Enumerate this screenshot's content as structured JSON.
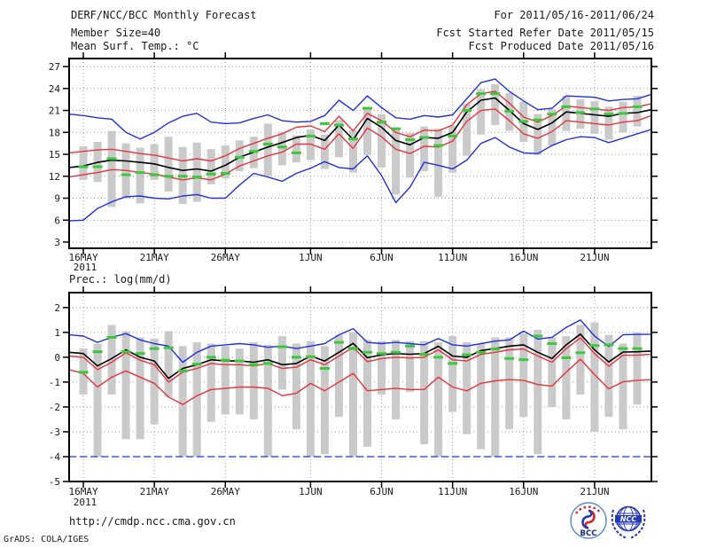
{
  "header": {
    "title": "DERF/NCC/BCC Monthly Forecast",
    "member_size": "Member Size=40",
    "variable": "Mean Surf. Temp.: °C",
    "for_range": "For 2011/05/16-2011/06/24",
    "fcst_started": "Fcst Started Refer Date 2011/05/15",
    "fcst_produced": "Fcst Produced Date 2011/05/16"
  },
  "footer": {
    "url": "http://cmdp.ncc.cma.gov.cn",
    "credit": "GrADS: COLA/IGES",
    "logos": {
      "bcc": "BCC",
      "ncc": "NCC"
    }
  },
  "colors": {
    "line_blue": "#2030e0",
    "line_red": "#e8323c",
    "line_black": "#000000",
    "obs_green": "#3cc83c",
    "bar_gray": "#cacaca",
    "grid_gray": "#989898",
    "frame_black": "#000000",
    "logo_bcc_ring": "#5b8dd6",
    "logo_bcc_red": "#d42222",
    "logo_bcc_navy": "#1a2a7a",
    "logo_ncc_blue": "#2438b8"
  },
  "chart_data": [
    {
      "type": "line",
      "name": "temperature-chart",
      "title": "Mean Surf. Temp.: °C",
      "x_year_label": "2011",
      "x_tick_labels": [
        "16MAY",
        "21MAY",
        "26MAY",
        "1JUN",
        "6JUN",
        "11JUN",
        "16JUN",
        "21JUN"
      ],
      "x_tick_days": [
        1,
        6,
        11,
        17,
        22,
        27,
        32,
        37
      ],
      "n_points": 42,
      "ylim": [
        2.15,
        28.1
      ],
      "yticks": [
        27,
        24,
        21,
        18,
        15,
        12,
        9,
        6,
        3
      ],
      "grid": "dotted",
      "series": [
        {
          "name": "max_blue",
          "color": "blue",
          "values": [
            20.5,
            20.3,
            20.0,
            19.8,
            18.0,
            17.1,
            18.0,
            19.3,
            20.2,
            20.6,
            19.4,
            19.2,
            19.3,
            19.9,
            20.4,
            19.6,
            19.4,
            19.5,
            20.3,
            22.4,
            21.0,
            23.0,
            21.4,
            20.0,
            19.8,
            20.3,
            20.1,
            20.4,
            22.6,
            24.8,
            25.3,
            23.6,
            22.3,
            21.1,
            21.3,
            23.0,
            22.9,
            22.8,
            22.3,
            22.5,
            22.6,
            23.2
          ]
        },
        {
          "name": "min_blue",
          "color": "blue",
          "values": [
            5.9,
            6.0,
            7.6,
            8.5,
            9.2,
            9.3,
            9.0,
            8.9,
            9.3,
            9.5,
            9.0,
            9.0,
            10.8,
            12.4,
            11.9,
            11.3,
            12.4,
            13.1,
            14.0,
            13.2,
            13.0,
            14.8,
            12.1,
            8.4,
            10.5,
            13.9,
            13.5,
            13.0,
            14.2,
            16.5,
            17.3,
            16.0,
            15.2,
            15.1,
            16.2,
            17.0,
            17.4,
            17.3,
            16.6,
            17.2,
            17.8,
            18.4
          ]
        },
        {
          "name": "upper_red",
          "color": "red",
          "values": [
            15.2,
            15.4,
            15.6,
            15.7,
            15.4,
            15.1,
            14.9,
            14.5,
            14.1,
            14.4,
            14.1,
            14.8,
            15.8,
            16.5,
            17.2,
            17.8,
            18.7,
            18.9,
            18.1,
            20.2,
            18.2,
            20.6,
            19.6,
            18.0,
            17.4,
            18.3,
            18.2,
            19.0,
            21.8,
            23.3,
            23.6,
            22.0,
            20.1,
            19.4,
            20.3,
            21.6,
            21.4,
            21.2,
            21.0,
            21.4,
            21.5,
            21.9
          ]
        },
        {
          "name": "lower_red",
          "color": "red",
          "values": [
            11.9,
            12.2,
            12.5,
            12.9,
            12.8,
            12.5,
            12.3,
            11.9,
            11.5,
            11.8,
            11.5,
            12.3,
            13.4,
            14.1,
            14.8,
            15.3,
            16.4,
            16.4,
            15.7,
            17.8,
            15.8,
            18.6,
            17.4,
            15.7,
            15.1,
            16.1,
            16.0,
            16.8,
            19.5,
            21.0,
            21.2,
            19.6,
            17.8,
            17.2,
            18.1,
            19.6,
            19.4,
            19.2,
            19.0,
            19.4,
            19.6,
            20.3
          ]
        },
        {
          "name": "mean_black",
          "color": "black",
          "values": [
            13.2,
            13.4,
            13.9,
            14.2,
            14.1,
            13.9,
            13.7,
            13.2,
            12.8,
            13.0,
            12.7,
            13.5,
            14.6,
            15.3,
            16.0,
            16.6,
            17.3,
            17.6,
            16.9,
            19.0,
            17.0,
            19.9,
            18.7,
            16.9,
            16.3,
            17.3,
            17.2,
            18.0,
            20.8,
            22.4,
            22.7,
            21.0,
            19.2,
            18.4,
            19.3,
            20.8,
            20.6,
            20.4,
            20.2,
            20.6,
            20.7,
            21.1
          ]
        }
      ],
      "obs": {
        "name": "obs_green_dash",
        "color": "green",
        "start_day": 1,
        "values": [
          13.3,
          13.3,
          14.4,
          12.2,
          12.5,
          12.2,
          12.0,
          12.0,
          11.9,
          12.3,
          12.4,
          14.6,
          15.4,
          16.4,
          16.0,
          15.2,
          17.5,
          19.2,
          19.0,
          17.1,
          21.3,
          19.4,
          18.5,
          17.0,
          17.3,
          16.2,
          17.5,
          21.0,
          23.3,
          23.3,
          20.9,
          19.5,
          19.7,
          20.5,
          21.5,
          20.7,
          21.2,
          20.5,
          20.6,
          21.5
        ]
      },
      "bars": {
        "name": "member_spread",
        "color": "gray",
        "start_day": 1,
        "low": [
          11.5,
          11.2,
          7.8,
          9.0,
          8.3,
          11.5,
          9.9,
          8.2,
          8.5,
          10.9,
          11.7,
          12.7,
          13.1,
          12.1,
          13.5,
          13.9,
          14.2,
          13.0,
          14.6,
          12.5,
          14.9,
          13.2,
          9.5,
          11.8,
          12.7,
          9.2,
          12.5,
          14.8,
          17.7,
          19.0,
          18.2,
          16.7,
          14.9,
          16.2,
          18.2,
          18.5,
          17.8,
          17.0,
          18.0,
          18.8
        ],
        "high": [
          16.1,
          16.7,
          18.2,
          16.5,
          15.9,
          16.4,
          17.4,
          16.0,
          16.6,
          15.7,
          16.2,
          16.9,
          17.4,
          19.2,
          18.0,
          17.6,
          18.4,
          17.7,
          19.7,
          18.3,
          21.3,
          20.5,
          18.5,
          17.9,
          18.8,
          18.5,
          18.9,
          21.9,
          23.9,
          24.6,
          23.4,
          22.2,
          20.5,
          21.2,
          23.0,
          22.5,
          22.3,
          21.5,
          22.2,
          23.0
        ]
      }
    },
    {
      "type": "line",
      "name": "precipitation-chart",
      "title": "Prec.: log(mm/d)",
      "x_year_label": "2011",
      "x_tick_labels": [
        "16MAY",
        "21MAY",
        "26MAY",
        "1JUN",
        "6JUN",
        "11JUN",
        "16JUN",
        "21JUN"
      ],
      "x_tick_days": [
        1,
        6,
        11,
        17,
        22,
        27,
        32,
        37
      ],
      "n_points": 42,
      "ylim": [
        -5,
        2.6
      ],
      "yticks": [
        2,
        1,
        0,
        -1,
        -2,
        -3,
        -4,
        -5
      ],
      "grid": "dotted",
      "min_clipped_at": -4,
      "series": [
        {
          "name": "max_blue",
          "color": "blue",
          "values": [
            0.9,
            0.85,
            0.6,
            0.8,
            0.95,
            0.7,
            0.55,
            0.45,
            -0.2,
            0.2,
            0.45,
            0.5,
            0.55,
            0.5,
            0.4,
            0.45,
            0.35,
            0.45,
            0.55,
            0.9,
            1.15,
            0.6,
            0.55,
            0.6,
            0.55,
            0.5,
            0.75,
            0.5,
            0.45,
            0.55,
            0.65,
            0.7,
            1.05,
            0.73,
            0.8,
            1.2,
            1.5,
            0.85,
            0.43,
            0.9,
            0.92,
            0.92
          ]
        },
        {
          "name": "upper_red",
          "color": "red",
          "values": [
            0.05,
            0.0,
            -0.5,
            -0.2,
            0.18,
            -0.12,
            -0.3,
            -1.0,
            -0.6,
            -0.45,
            -0.25,
            -0.3,
            -0.3,
            -0.35,
            -0.25,
            -0.45,
            -0.4,
            -0.1,
            -0.3,
            0.05,
            0.4,
            -0.18,
            -0.05,
            0.0,
            -0.03,
            0.0,
            0.3,
            -0.1,
            -0.15,
            0.12,
            0.2,
            0.3,
            0.33,
            0.05,
            -0.2,
            0.35,
            0.78,
            0.15,
            -0.36,
            0.08,
            0.08,
            0.12
          ]
        },
        {
          "name": "lower_red",
          "color": "red",
          "values": [
            -0.5,
            -0.65,
            -1.2,
            -0.8,
            -0.55,
            -0.8,
            -1.05,
            -1.6,
            -1.9,
            -1.55,
            -1.3,
            -1.25,
            -1.2,
            -1.2,
            -1.25,
            -1.55,
            -1.45,
            -1.05,
            -1.35,
            -1.0,
            -0.65,
            -1.35,
            -1.3,
            -1.25,
            -1.3,
            -1.3,
            -0.8,
            -1.2,
            -1.35,
            -1.05,
            -0.95,
            -0.9,
            -0.93,
            -1.1,
            -1.16,
            -0.6,
            -0.08,
            -0.7,
            -1.27,
            -0.99,
            -0.93,
            -0.9
          ]
        },
        {
          "name": "mean_black",
          "color": "black",
          "values": [
            0.2,
            0.15,
            -0.35,
            -0.05,
            0.3,
            0.0,
            -0.15,
            -0.85,
            -0.45,
            -0.3,
            -0.1,
            -0.15,
            -0.15,
            -0.2,
            -0.1,
            -0.3,
            -0.25,
            0.05,
            -0.15,
            0.2,
            0.56,
            -0.02,
            0.1,
            0.15,
            0.12,
            0.15,
            0.44,
            0.05,
            0.0,
            0.27,
            0.35,
            0.45,
            0.5,
            0.2,
            -0.05,
            0.5,
            0.93,
            0.3,
            -0.19,
            0.21,
            0.22,
            0.25
          ]
        }
      ],
      "obs": {
        "name": "obs_green_dash",
        "color": "green",
        "start_day": 1,
        "values": [
          -0.6,
          0.22,
          0.8,
          0.22,
          0.15,
          0.35,
          0.38,
          -0.55,
          -0.28,
          0.0,
          -0.12,
          -0.15,
          -0.3,
          -0.25,
          0.42,
          0.0,
          0.02,
          -0.45,
          0.6,
          0.35,
          0.2,
          0.15,
          0.2,
          0.45,
          0.12,
          0.0,
          -0.25,
          0.1,
          0.2,
          0.33,
          -0.05,
          -0.1,
          0.85,
          0.55,
          -0.02,
          0.18,
          0.47,
          0.5,
          0.35,
          0.35
        ]
      },
      "bars": {
        "name": "member_spread",
        "color": "gray",
        "start_day": 1,
        "low": [
          -1.5,
          -4.0,
          -1.5,
          -3.3,
          -3.3,
          -2.7,
          -1.6,
          -4.0,
          -4.0,
          -2.6,
          -2.3,
          -2.3,
          -2.5,
          -4.0,
          -1.3,
          -2.9,
          -4.0,
          -3.9,
          -2.4,
          -4.0,
          -3.6,
          -1.5,
          -2.5,
          -1.4,
          -3.5,
          -4.0,
          -2.2,
          -3.1,
          -3.7,
          -4.0,
          -2.9,
          -2.4,
          -3.9,
          -2.0,
          -2.5,
          -1.5,
          -3.0,
          -2.4,
          -2.9,
          -1.9
        ],
        "high": [
          0.35,
          0.55,
          1.3,
          1.05,
          0.8,
          0.75,
          1.05,
          0.45,
          0.6,
          0.55,
          0.45,
          0.35,
          0.6,
          0.5,
          0.85,
          0.55,
          0.65,
          0.45,
          0.9,
          1.0,
          0.7,
          0.65,
          0.7,
          0.65,
          0.65,
          0.6,
          0.85,
          0.6,
          0.55,
          0.8,
          0.8,
          0.95,
          1.1,
          0.8,
          0.85,
          1.3,
          1.4,
          0.9,
          0.55,
          1.0
        ]
      }
    }
  ]
}
